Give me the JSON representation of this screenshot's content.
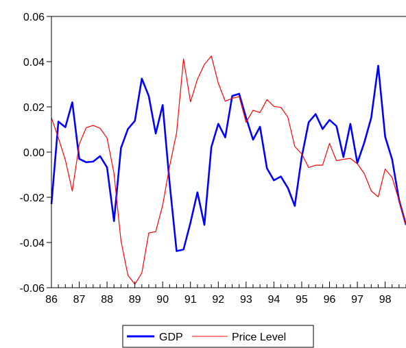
{
  "chart_data": {
    "type": "line",
    "title": "",
    "xlabel": "",
    "ylabel": "",
    "x_start": 1986.0,
    "x_step": 0.25,
    "xlim": [
      1986.0,
      1998.75
    ],
    "ylim": [
      -0.06,
      0.06
    ],
    "x_tick_values": [
      1986,
      1987,
      1988,
      1989,
      1990,
      1991,
      1992,
      1993,
      1994,
      1995,
      1996,
      1997,
      1998
    ],
    "x_tick_labels": [
      "86",
      "87",
      "88",
      "89",
      "90",
      "91",
      "92",
      "93",
      "94",
      "95",
      "96",
      "97",
      "98"
    ],
    "y_ticks": [
      0.06,
      0.04,
      0.02,
      0.0,
      -0.02,
      -0.04,
      -0.06
    ],
    "y_tick_labels": [
      "0.06",
      "0.04",
      "0.02",
      "0.00",
      "-0.02",
      "-0.04",
      "-0.06"
    ],
    "grid": false,
    "legend_position": "bottom-center",
    "series": [
      {
        "name": "GDP",
        "color": "#0000ff",
        "values": [
          -0.023,
          0.0135,
          0.011,
          0.022,
          -0.003,
          -0.0045,
          -0.0042,
          -0.0018,
          -0.0068,
          -0.0305,
          0.0018,
          0.0102,
          0.0138,
          0.0325,
          0.0248,
          0.0082,
          0.0208,
          -0.0138,
          -0.0438,
          -0.0431,
          -0.0312,
          -0.0178,
          -0.0322,
          0.0022,
          0.0125,
          0.0065,
          0.0248,
          0.0258,
          0.0152,
          0.0055,
          0.0112,
          -0.0072,
          -0.0125,
          -0.0108,
          -0.0158,
          -0.0238,
          -0.0022,
          0.0132,
          0.0168,
          0.0102,
          0.0142,
          0.0115,
          -0.0022,
          0.0125,
          -0.0048,
          0.0042,
          0.0152,
          0.0382,
          0.0068,
          -0.0032,
          -0.0212,
          -0.0322
        ]
      },
      {
        "name": "Price Level",
        "color": "#ff0000",
        "values": [
          0.0152,
          0.0062,
          -0.0035,
          -0.0172,
          0.0035,
          0.0108,
          0.0118,
          0.0105,
          0.0062,
          -0.0095,
          -0.0392,
          -0.0545,
          -0.0585,
          -0.0535,
          -0.0358,
          -0.0352,
          -0.0235,
          -0.0062,
          0.0085,
          0.0412,
          0.0222,
          0.0322,
          0.0388,
          0.0425,
          0.0305,
          0.0225,
          0.0238,
          0.0245,
          0.0132,
          0.0185,
          0.0175,
          0.0232,
          0.0202,
          0.0198,
          0.0155,
          0.0025,
          -0.0008,
          -0.0068,
          -0.0058,
          -0.0058,
          0.0038,
          -0.0038,
          -0.0032,
          -0.0028,
          -0.0052,
          -0.0095,
          -0.0172,
          -0.0198,
          -0.0075,
          -0.0112,
          -0.0215,
          -0.0322
        ]
      }
    ]
  }
}
